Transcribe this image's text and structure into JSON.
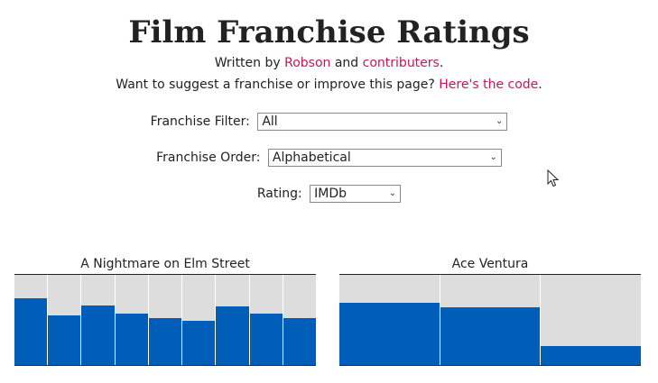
{
  "header": {
    "title": "Film Franchise Ratings",
    "byline_prefix": "Written by ",
    "author_link": "Robson",
    "byline_middle": " and ",
    "contributors_link": "contributers",
    "byline_suffix": ".",
    "suggest_prefix": "Want to suggest a franchise or improve this page? ",
    "code_link": "Here's the code",
    "suggest_suffix": "."
  },
  "filters": {
    "franchise_filter": {
      "label": "Franchise Filter:",
      "value": "All"
    },
    "franchise_order": {
      "label": "Franchise Order:",
      "value": "Alphabetical"
    },
    "rating": {
      "label": "Rating:",
      "value": "IMDb"
    }
  },
  "colors": {
    "bar": "#005eb8",
    "slot": "#dddddd",
    "link": "#c2185b"
  },
  "chart_data": [
    {
      "type": "bar",
      "title": "A Nightmare on Elm Street",
      "values": [
        0.74,
        0.55,
        0.66,
        0.57,
        0.52,
        0.49,
        0.65,
        0.57,
        0.52
      ]
    },
    {
      "type": "bar",
      "title": "Ace Ventura",
      "values": [
        0.69,
        0.64,
        0.21
      ]
    }
  ]
}
